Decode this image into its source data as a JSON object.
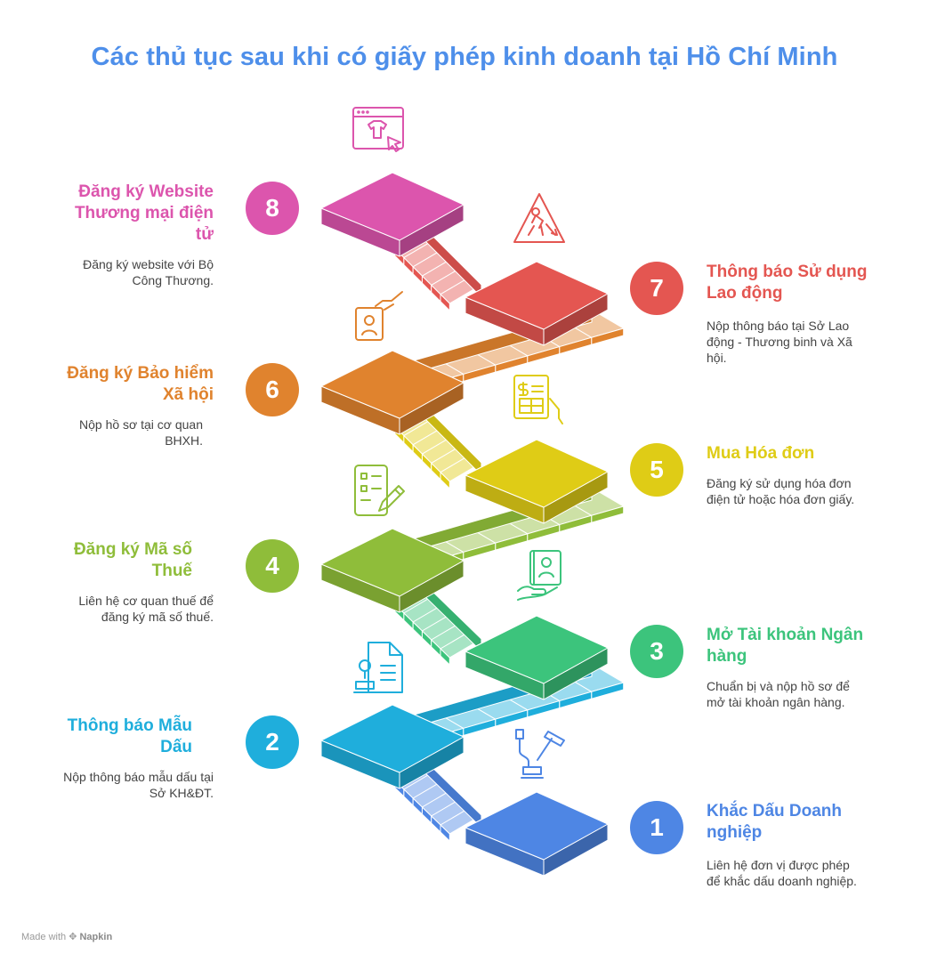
{
  "title": "Các thủ tục sau khi có giấy phép kinh doanh tại Hồ Chí Minh",
  "footer": {
    "made_with": "Made with",
    "brand": "Napkin"
  },
  "steps": [
    {
      "number": "1",
      "heading": "Khắc Dấu Doanh nghiệp",
      "description": "Liên hệ đơn vị được phép để khắc dấu doanh nghiệp.",
      "color": "#4e86e4",
      "icon": "stamp-icon"
    },
    {
      "number": "2",
      "heading": "Thông báo Mẫu Dấu",
      "description": "Nộp thông báo mẫu dấu tại Sở KH&ĐT.",
      "color": "#1faedc",
      "icon": "document-stamp-icon"
    },
    {
      "number": "3",
      "heading": "Mở Tài khoản Ngân hàng",
      "description": "Chuẩn bị và nộp hồ sơ để mở tài khoản ngân hàng.",
      "color": "#3cc47c",
      "icon": "hand-id-card-icon"
    },
    {
      "number": "4",
      "heading": "Đăng ký Mã số Thuế",
      "description": "Liên hệ cơ quan thuế để đăng ký mã số thuế.",
      "color": "#8fbd3a",
      "icon": "checklist-pencil-icon"
    },
    {
      "number": "5",
      "heading": "Mua Hóa đơn",
      "description": "Đăng ký sử dụng hóa đơn điện tử hoặc hóa đơn giấy.",
      "color": "#dfcc16",
      "icon": "invoice-hand-icon"
    },
    {
      "number": "6",
      "heading": "Đăng ký Bảo hiểm Xã hội",
      "description": "Nộp hồ sơ tại cơ quan BHXH.",
      "color": "#e0832e",
      "icon": "id-card-hand-icon"
    },
    {
      "number": "7",
      "heading": "Thông báo Sử dụng Lao động",
      "description": "Nộp thông báo tại Sở Lao động - Thương binh và Xã hội.",
      "color": "#e45651",
      "icon": "worker-warning-icon"
    },
    {
      "number": "8",
      "heading": "Đăng ký Website Thương mại điện tử",
      "description": "Đăng ký website với Bộ Công Thương.",
      "color": "#dc55ad",
      "icon": "web-shop-cursor-icon"
    }
  ]
}
